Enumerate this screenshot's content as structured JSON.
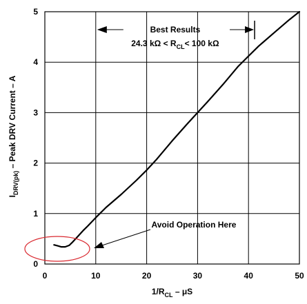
{
  "chart_data": {
    "type": "line",
    "title": "",
    "xlabel": {
      "base": "1/R",
      "sub": "CL",
      "tail": " – μS"
    },
    "ylabel": {
      "base": "I",
      "sub": "DRV(pk)",
      "tail": " – Peak DRV Current – A"
    },
    "xlim": [
      0,
      50
    ],
    "ylim": [
      0,
      5
    ],
    "x_ticks": [
      0,
      10,
      20,
      30,
      40,
      50
    ],
    "x_tick_labels": [
      "0",
      "10",
      "20",
      "30",
      "40",
      "50"
    ],
    "y_ticks": [
      0,
      1,
      2,
      3,
      4,
      5
    ],
    "y_tick_labels": [
      "0",
      "1",
      "2",
      "3",
      "4",
      "5"
    ],
    "grid": true,
    "series": [
      {
        "x": [
          1.8,
          2.5,
          3.2,
          4.0,
          4.8,
          5.5,
          6.5,
          7.5,
          8.5,
          10,
          12,
          15,
          18,
          20,
          22,
          25,
          28,
          30,
          32,
          35,
          38,
          40,
          42,
          45,
          48,
          50
        ],
        "y": [
          0.38,
          0.36,
          0.34,
          0.34,
          0.37,
          0.44,
          0.55,
          0.66,
          0.76,
          0.92,
          1.12,
          1.38,
          1.66,
          1.86,
          2.08,
          2.44,
          2.78,
          3.0,
          3.22,
          3.56,
          3.92,
          4.12,
          4.32,
          4.58,
          4.84,
          5.0
        ]
      }
    ],
    "annotations": {
      "best_results": {
        "title": "Best Results",
        "range_prefix": "24.3  kΩ < R",
        "range_sub": "CL",
        "range_suffix": "< 100 kΩ",
        "x_start": 10,
        "x_end": 41.2
      },
      "avoid": {
        "text": "Avoid Operation Here"
      }
    }
  }
}
